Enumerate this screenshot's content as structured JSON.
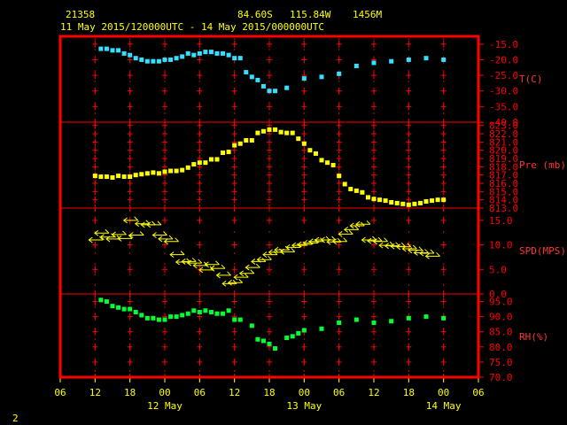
{
  "header": {
    "station": "21358",
    "lat": "84.60S",
    "lon": "115.84W",
    "elev": "1456M",
    "range": "11 May 2015/120000UTC - 14 May 2015/000000UTC"
  },
  "page_number": "2",
  "colors": {
    "background": "#000000",
    "frame": "#ff0000",
    "text": "#ffff00",
    "temperature": "#33e0ff",
    "pressure": "#ffff00",
    "wind": "#ffff00",
    "humidity": "#00ff33"
  },
  "x_axis": {
    "tick_labels": [
      "06",
      "12",
      "18",
      "00",
      "06",
      "12",
      "18",
      "00",
      "06",
      "12",
      "18",
      "00",
      "06"
    ],
    "tick_hours": [
      -6,
      0,
      6,
      12,
      18,
      24,
      30,
      36,
      42,
      48,
      54,
      60,
      66
    ],
    "date_labels": [
      {
        "hour": 12,
        "text": "12 May"
      },
      {
        "hour": 36,
        "text": "13 May"
      },
      {
        "hour": 60,
        "text": "14 May"
      }
    ],
    "range_hours": [
      -6,
      66
    ]
  },
  "chart_data": [
    {
      "type": "scatter",
      "name": "T(C)",
      "ylim": [
        -40,
        -12.5
      ],
      "tick_labels": [
        "-15.0",
        "-20.0",
        "-25.0",
        "-30.0",
        "-35.0",
        "-40.0"
      ],
      "tick_values": [
        -15,
        -20,
        -25,
        -30,
        -35,
        -40
      ],
      "x": [
        1,
        2,
        3,
        4,
        5,
        6,
        7,
        8,
        9,
        10,
        11,
        12,
        13,
        14,
        15,
        16,
        17,
        18,
        19,
        20,
        21,
        22,
        23,
        24,
        25,
        26,
        27,
        28,
        29,
        30,
        31,
        33,
        36,
        39,
        42,
        45,
        48,
        51,
        54,
        57,
        60
      ],
      "values": [
        -16.5,
        -16.5,
        -17.0,
        -17.0,
        -18.0,
        -18.5,
        -19.5,
        -20.0,
        -20.5,
        -20.5,
        -20.5,
        -20.0,
        -20.0,
        -19.5,
        -19.0,
        -18.0,
        -18.5,
        -18.0,
        -17.5,
        -17.5,
        -18.0,
        -18.0,
        -18.5,
        -19.5,
        -19.5,
        -24.0,
        -25.5,
        -26.5,
        -28.5,
        -30.0,
        -30.0,
        -29.0,
        -26.0,
        -25.5,
        -24.5,
        -22.0,
        -21.0,
        -20.5,
        -20.0,
        -19.5,
        -20.0
      ]
    },
    {
      "type": "scatter",
      "name": "Pre (mb)",
      "ylim": [
        813,
        823.4
      ],
      "tick_labels": [
        "823.0",
        "822.0",
        "821.0",
        "820.0",
        "819.0",
        "818.0",
        "817.0",
        "816.0",
        "815.0",
        "814.0",
        "813.0"
      ],
      "tick_values": [
        823,
        822,
        821,
        820,
        819,
        818,
        817,
        816,
        815,
        814,
        813
      ],
      "x": [
        0,
        1,
        2,
        3,
        4,
        5,
        6,
        7,
        8,
        9,
        10,
        11,
        12,
        13,
        14,
        15,
        16,
        17,
        18,
        19,
        20,
        21,
        22,
        23,
        24,
        25,
        26,
        27,
        28,
        29,
        30,
        31,
        32,
        33,
        34,
        35,
        36,
        37,
        38,
        39,
        40,
        41,
        42,
        43,
        44,
        45,
        46,
        47,
        48,
        49,
        50,
        51,
        52,
        53,
        54,
        55,
        56,
        57,
        58,
        59,
        60
      ],
      "values": [
        816.9,
        816.8,
        816.8,
        816.7,
        816.9,
        816.8,
        816.8,
        817.0,
        817.1,
        817.2,
        817.3,
        817.2,
        817.4,
        817.5,
        817.5,
        817.6,
        817.9,
        818.3,
        818.5,
        818.5,
        818.9,
        818.9,
        819.7,
        819.8,
        820.6,
        820.8,
        821.2,
        821.2,
        822.1,
        822.3,
        822.5,
        822.5,
        822.2,
        822.1,
        822.1,
        821.4,
        820.8,
        820.0,
        819.6,
        818.8,
        818.5,
        818.2,
        816.9,
        815.9,
        815.3,
        815.1,
        814.9,
        814.3,
        814.1,
        814.0,
        813.9,
        813.7,
        813.6,
        813.5,
        813.4,
        813.5,
        813.6,
        813.8,
        813.9,
        814.0,
        814.0
      ]
    },
    {
      "type": "scatter",
      "name": "SPD(MPS)",
      "ylim": [
        0,
        17.5
      ],
      "tick_labels": [
        "15.0",
        "10.0",
        "5.0",
        "0.0"
      ],
      "tick_values": [
        15,
        10,
        5,
        0
      ],
      "x": [
        0,
        1,
        2,
        3,
        4,
        5,
        6,
        7,
        8,
        9,
        10,
        11,
        12,
        13,
        14,
        15,
        16,
        17,
        18,
        19,
        20,
        21,
        22,
        23,
        24,
        25,
        26,
        27,
        28,
        29,
        30,
        31,
        32,
        33,
        34,
        35,
        36,
        37,
        38,
        39,
        40,
        41,
        42,
        43,
        44,
        45,
        46,
        47,
        48,
        49,
        50,
        51,
        52,
        53,
        54,
        55,
        56,
        57,
        58
      ],
      "values": [
        11.0,
        12.4,
        11.6,
        11.2,
        12.1,
        11.3,
        15.0,
        12.0,
        14.3,
        14.1,
        14.1,
        12.0,
        11.2,
        10.7,
        8.0,
        6.5,
        6.6,
        6.3,
        5.8,
        4.9,
        6.0,
        5.2,
        3.8,
        2.1,
        2.3,
        3.4,
        4.2,
        5.4,
        6.6,
        7.0,
        8.0,
        8.5,
        9.0,
        8.6,
        9.5,
        9.9,
        10.1,
        10.4,
        10.7,
        11.0,
        11.0,
        10.6,
        10.7,
        12.2,
        13.1,
        13.9,
        14.2,
        11.0,
        10.8,
        10.7,
        9.9,
        9.8,
        9.7,
        9.6,
        9.2,
        8.9,
        8.4,
        8.3,
        7.7
      ]
    },
    {
      "type": "scatter",
      "name": "RH(%)",
      "ylim": [
        70,
        97.5
      ],
      "tick_labels": [
        "95.0",
        "90.0",
        "85.0",
        "80.0",
        "75.0",
        "70.0"
      ],
      "tick_values": [
        95,
        90,
        85,
        80,
        75,
        70
      ],
      "x": [
        1,
        2,
        3,
        4,
        5,
        6,
        7,
        8,
        9,
        10,
        11,
        12,
        13,
        14,
        15,
        16,
        17,
        18,
        19,
        20,
        21,
        22,
        23,
        24,
        25,
        27,
        28,
        29,
        30,
        31,
        33,
        34,
        35,
        36,
        39,
        42,
        45,
        48,
        51,
        54,
        57,
        60
      ],
      "values": [
        95.5,
        95.0,
        93.5,
        93.0,
        92.5,
        92.5,
        91.5,
        90.5,
        89.5,
        89.5,
        89.0,
        89.0,
        90.0,
        90.0,
        90.5,
        91.0,
        92.0,
        91.5,
        92.0,
        91.5,
        91.0,
        91.0,
        92.0,
        89.0,
        89.0,
        87.0,
        82.5,
        82.0,
        81.0,
        79.5,
        83.0,
        83.5,
        84.5,
        85.5,
        86.0,
        88.0,
        89.0,
        88.0,
        88.5,
        89.5,
        90.0,
        89.5
      ]
    }
  ]
}
